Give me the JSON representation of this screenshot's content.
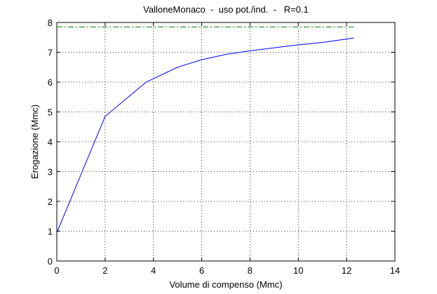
{
  "chart_data": {
    "type": "line",
    "title": "ValloneMonaco  -  uso pot./ind.  -   R=0.1",
    "xlabel": "Volume di compenso (Mmc)",
    "ylabel": "Erogazione (Mmc)",
    "series": [
      {
        "color": "#0000ff",
        "style": "solid",
        "x": [
          0,
          2,
          3.7,
          5,
          6,
          7,
          8,
          9,
          10,
          11,
          12.3
        ],
        "values": [
          0.95,
          4.85,
          6,
          6.5,
          6.75,
          6.93,
          7.05,
          7.15,
          7.25,
          7.33,
          7.48
        ]
      },
      {
        "color": "#008000",
        "style": "dashdot",
        "x": [
          0,
          12.3
        ],
        "values": [
          7.85,
          7.85
        ]
      }
    ],
    "xlim": [
      0,
      14
    ],
    "xticks": [
      0,
      2,
      4,
      6,
      8,
      10,
      12,
      14
    ],
    "ylim": [
      0,
      8
    ],
    "yticks": [
      0,
      1,
      2,
      3,
      4,
      5,
      6,
      7,
      8
    ],
    "grid": true
  }
}
